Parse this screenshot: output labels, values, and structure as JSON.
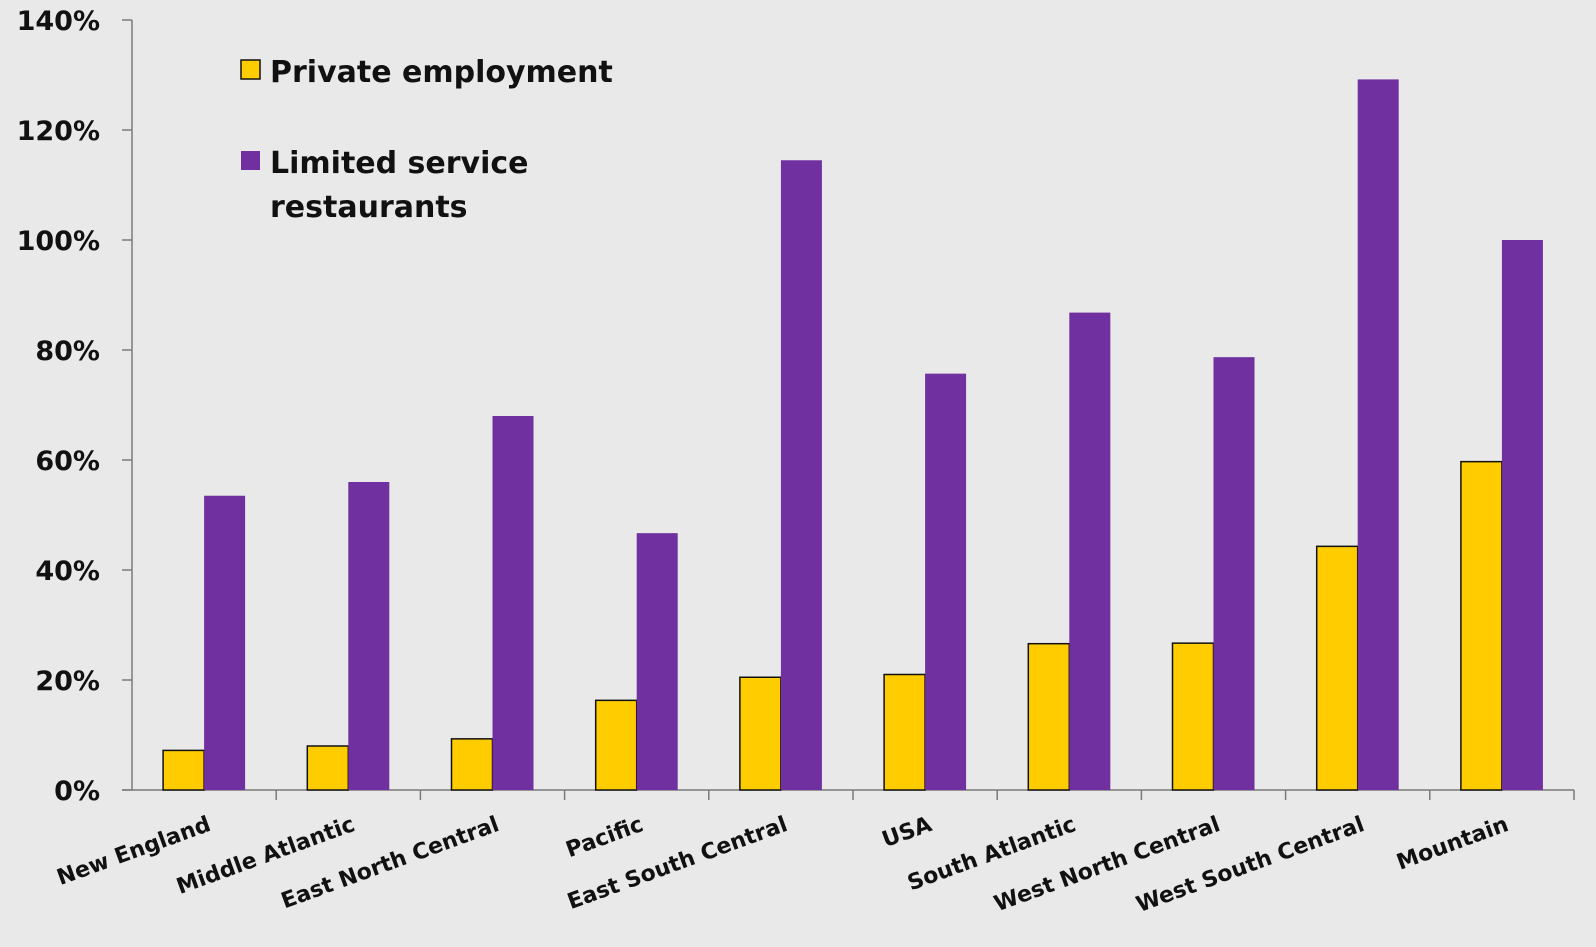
{
  "chart_data": {
    "type": "bar",
    "categories": [
      "New England",
      "Middle Atlantic",
      "East North Central",
      "Pacific",
      "East South Central",
      "USA",
      "South Atlantic",
      "West North Central",
      "West South Central",
      "Mountain"
    ],
    "series": [
      {
        "name": "Private employment",
        "color": "#ffcc00",
        "values": [
          7.2,
          8.0,
          9.3,
          16.3,
          20.5,
          21.0,
          26.6,
          26.7,
          44.3,
          59.7
        ]
      },
      {
        "name": "Limited service restaurants",
        "color": "#7030a0",
        "values": [
          53.5,
          56.0,
          68.0,
          46.7,
          114.5,
          75.7,
          86.8,
          78.7,
          129.2,
          100.0
        ]
      }
    ],
    "ylim": [
      0,
      140
    ],
    "yticks": [
      0,
      20,
      40,
      60,
      80,
      100,
      120,
      140
    ],
    "ytick_labels": [
      "0%",
      "20%",
      "40%",
      "60%",
      "80%",
      "100%",
      "120%",
      "140%"
    ],
    "legend": {
      "placement": "top-left",
      "entries": [
        {
          "lines": [
            "Private employment"
          ]
        },
        {
          "lines": [
            "Limited service",
            "restaurants"
          ]
        }
      ]
    },
    "grid": false
  }
}
